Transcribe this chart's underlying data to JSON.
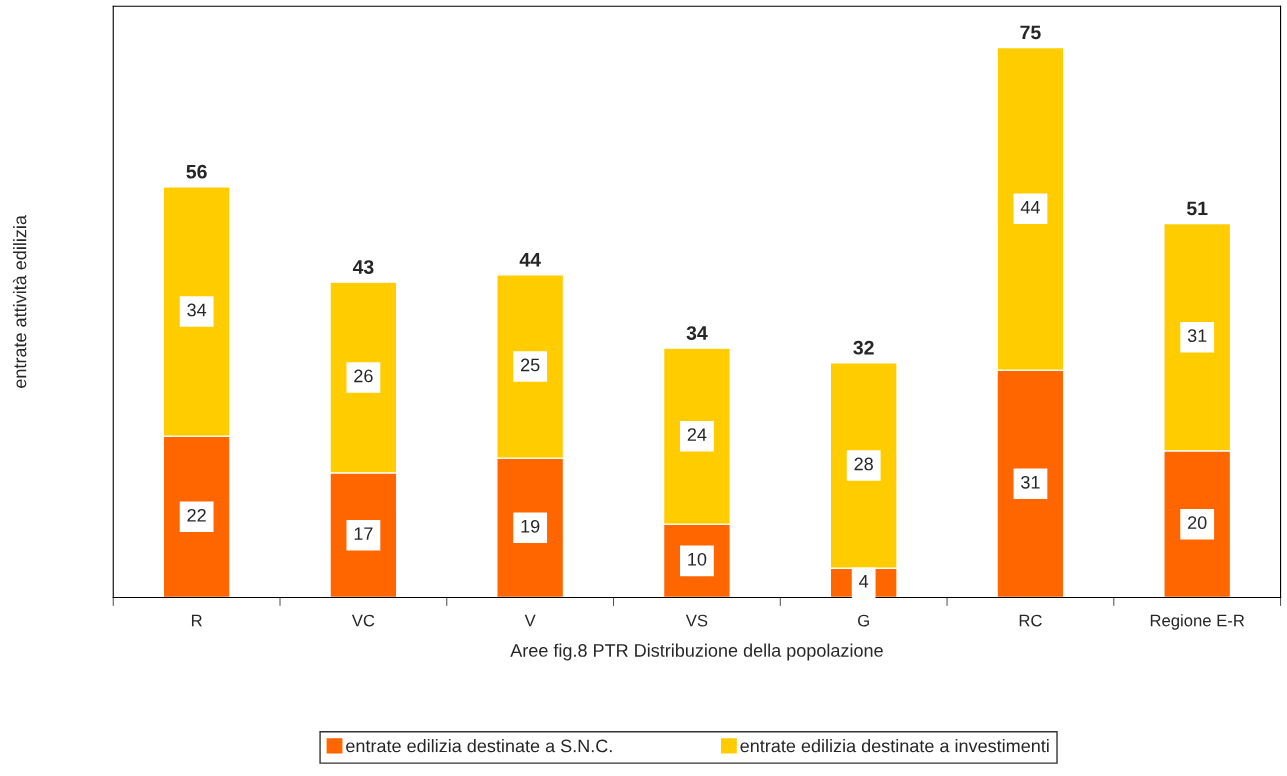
{
  "chart_data": {
    "type": "bar",
    "stacked": true,
    "ylabel": "entrate attività edilizia",
    "xlabel": "Aree fig.8 PTR Distribuzione della popolazione",
    "categories": [
      "R",
      "VC",
      "V",
      "VS",
      "G",
      "RC",
      "Regione E-R"
    ],
    "series": [
      {
        "name": "entrate edilizia destinate a S.N.C.",
        "color": "#ff6600",
        "values": [
          22,
          17,
          19,
          10,
          4,
          31,
          20
        ]
      },
      {
        "name": "entrate edilizia destinate a investimenti",
        "color": "#ffcc00",
        "values": [
          34,
          26,
          25,
          24,
          28,
          44,
          31
        ]
      }
    ],
    "data_labels": true,
    "totals": [
      "56",
      "43",
      "44",
      "34",
      "32",
      "75",
      "51"
    ],
    "legend": "bottom",
    "grid": false
  }
}
